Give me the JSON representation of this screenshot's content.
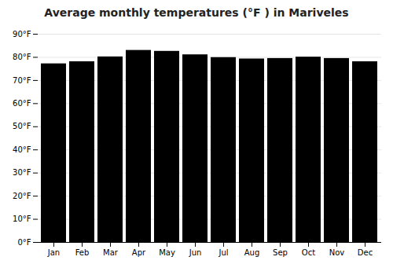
{
  "chart_data": {
    "type": "bar",
    "title": "Average monthly temperatures (°F ) in Mariveles",
    "categories": [
      "Jan",
      "Feb",
      "Mar",
      "Apr",
      "May",
      "Jun",
      "Jul",
      "Aug",
      "Sep",
      "Oct",
      "Nov",
      "Dec"
    ],
    "values": [
      77.2,
      78.1,
      80.2,
      83.0,
      82.6,
      81.1,
      79.9,
      79.3,
      79.5,
      80.1,
      79.5,
      78.1
    ],
    "ylim": [
      0,
      90
    ],
    "yticks": [
      {
        "value": 0,
        "label": "0°F"
      },
      {
        "value": 10,
        "label": "10°F"
      },
      {
        "value": 20,
        "label": "20°F"
      },
      {
        "value": 30,
        "label": "30°F"
      },
      {
        "value": 40,
        "label": "40°F"
      },
      {
        "value": 50,
        "label": "50°F"
      },
      {
        "value": 60,
        "label": "60°F"
      },
      {
        "value": 70,
        "label": "70°F"
      },
      {
        "value": 80,
        "label": "80°F"
      },
      {
        "value": 90,
        "label": "90°F"
      }
    ],
    "grid": true
  }
}
